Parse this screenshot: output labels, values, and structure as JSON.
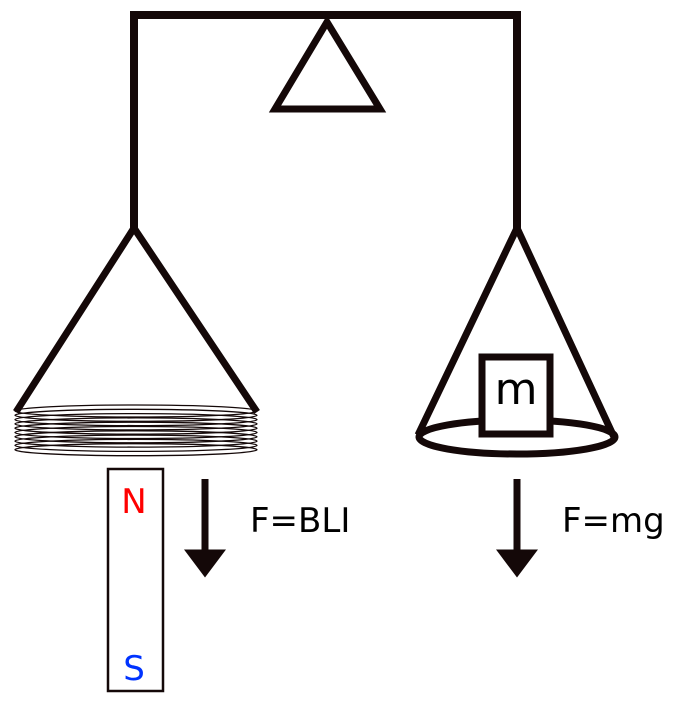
{
  "labels": {
    "mass": "m",
    "magnet_north": "N",
    "magnet_south": "S",
    "force_electromagnetic": "F=BLI",
    "force_gravity": "F=mg"
  },
  "colors": {
    "line": "#140808",
    "north_pole": "#ff0000",
    "south_pole": "#0033ff",
    "background": "#ffffff"
  }
}
